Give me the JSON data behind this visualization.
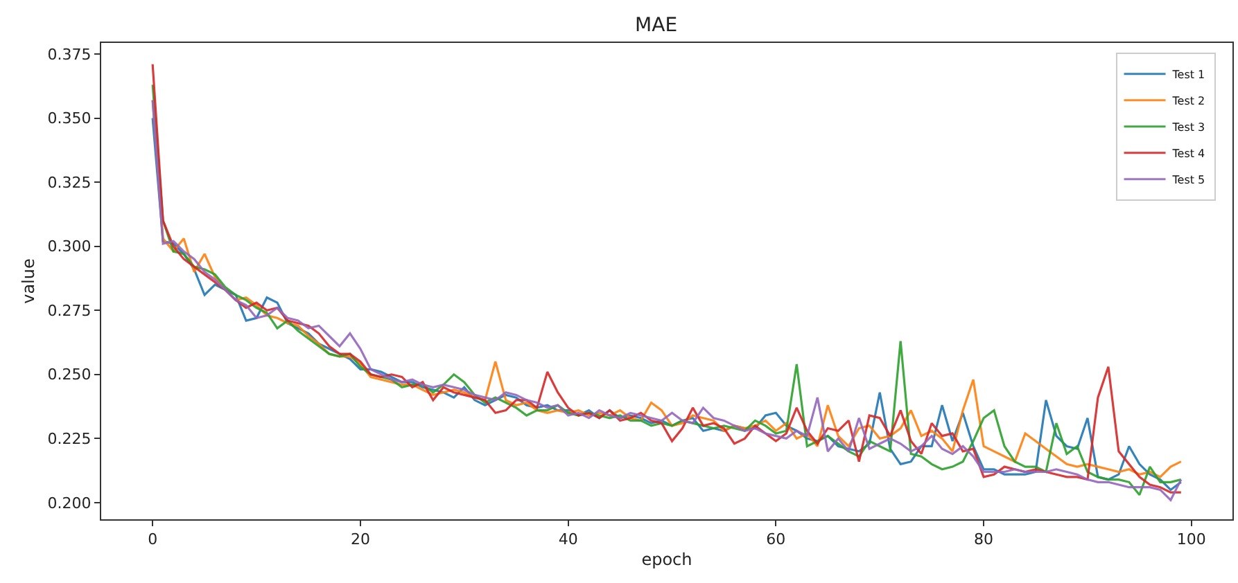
{
  "chart_data": {
    "type": "line",
    "title": "MAE",
    "xlabel": "epoch",
    "ylabel": "value",
    "x": [
      0,
      1,
      2,
      3,
      4,
      5,
      6,
      7,
      8,
      9,
      10,
      11,
      12,
      13,
      14,
      15,
      16,
      17,
      18,
      19,
      20,
      21,
      22,
      23,
      24,
      25,
      26,
      27,
      28,
      29,
      30,
      31,
      32,
      33,
      34,
      35,
      36,
      37,
      38,
      39,
      40,
      41,
      42,
      43,
      44,
      45,
      46,
      47,
      48,
      49,
      50,
      51,
      52,
      53,
      54,
      55,
      56,
      57,
      58,
      59,
      60,
      61,
      62,
      63,
      64,
      65,
      66,
      67,
      68,
      69,
      70,
      71,
      72,
      73,
      74,
      75,
      76,
      77,
      78,
      79,
      80,
      81,
      82,
      83,
      84,
      85,
      86,
      87,
      88,
      89,
      90,
      91,
      92,
      93,
      94,
      95,
      96,
      97,
      98,
      99
    ],
    "xlim": [
      -4.95,
      103.95
    ],
    "xticks": [
      0,
      20,
      40,
      60,
      80,
      100
    ],
    "ylim": [
      0.1935,
      0.3793
    ],
    "yticks": [
      {
        "value": 0.2,
        "label": "0.200"
      },
      {
        "value": 0.225,
        "label": "0.225"
      },
      {
        "value": 0.25,
        "label": "0.250"
      },
      {
        "value": 0.275,
        "label": "0.275"
      },
      {
        "value": 0.3,
        "label": "0.300"
      },
      {
        "value": 0.325,
        "label": "0.325"
      },
      {
        "value": 0.35,
        "label": "0.350"
      },
      {
        "value": 0.375,
        "label": "0.375"
      }
    ],
    "grid": false,
    "legend": "top right",
    "marker": "none",
    "line_style": "solid",
    "series": [
      {
        "name": "Test 1",
        "color": "#1f77b4",
        "values": [
          0.35,
          0.302,
          0.301,
          0.297,
          0.291,
          0.281,
          0.285,
          0.283,
          0.281,
          0.271,
          0.272,
          0.28,
          0.278,
          0.27,
          0.268,
          0.266,
          0.262,
          0.26,
          0.258,
          0.256,
          0.252,
          0.252,
          0.251,
          0.249,
          0.247,
          0.247,
          0.245,
          0.244,
          0.243,
          0.241,
          0.245,
          0.24,
          0.238,
          0.24,
          0.242,
          0.241,
          0.238,
          0.237,
          0.238,
          0.236,
          0.236,
          0.234,
          0.236,
          0.233,
          0.236,
          0.233,
          0.234,
          0.233,
          0.231,
          0.232,
          0.23,
          0.232,
          0.233,
          0.228,
          0.229,
          0.228,
          0.23,
          0.229,
          0.229,
          0.234,
          0.235,
          0.23,
          0.228,
          0.225,
          0.224,
          0.226,
          0.222,
          0.221,
          0.22,
          0.223,
          0.243,
          0.221,
          0.215,
          0.216,
          0.222,
          0.222,
          0.238,
          0.224,
          0.235,
          0.222,
          0.213,
          0.213,
          0.211,
          0.211,
          0.211,
          0.212,
          0.24,
          0.226,
          0.222,
          0.221,
          0.233,
          0.21,
          0.209,
          0.211,
          0.222,
          0.215,
          0.211,
          0.209,
          0.205,
          0.208
        ]
      },
      {
        "name": "Test 2",
        "color": "#ff7f0e",
        "values": [
          0.357,
          0.303,
          0.298,
          0.303,
          0.29,
          0.297,
          0.288,
          0.283,
          0.279,
          0.28,
          0.277,
          0.273,
          0.272,
          0.27,
          0.269,
          0.265,
          0.262,
          0.258,
          0.257,
          0.257,
          0.254,
          0.249,
          0.248,
          0.247,
          0.246,
          0.246,
          0.244,
          0.242,
          0.243,
          0.244,
          0.243,
          0.241,
          0.24,
          0.255,
          0.24,
          0.238,
          0.239,
          0.236,
          0.235,
          0.236,
          0.235,
          0.236,
          0.234,
          0.235,
          0.234,
          0.236,
          0.233,
          0.232,
          0.239,
          0.236,
          0.23,
          0.231,
          0.234,
          0.233,
          0.232,
          0.228,
          0.23,
          0.229,
          0.23,
          0.232,
          0.228,
          0.231,
          0.225,
          0.227,
          0.222,
          0.238,
          0.226,
          0.222,
          0.229,
          0.23,
          0.225,
          0.226,
          0.229,
          0.236,
          0.226,
          0.228,
          0.225,
          0.22,
          0.236,
          0.248,
          0.222,
          0.22,
          0.218,
          0.216,
          0.227,
          0.224,
          0.221,
          0.218,
          0.215,
          0.214,
          0.215,
          0.214,
          0.213,
          0.212,
          0.213,
          0.211,
          0.212,
          0.21,
          0.214,
          0.216
        ]
      },
      {
        "name": "Test 3",
        "color": "#2ca02c",
        "values": [
          0.363,
          0.31,
          0.298,
          0.297,
          0.292,
          0.291,
          0.289,
          0.284,
          0.281,
          0.279,
          0.276,
          0.274,
          0.268,
          0.271,
          0.267,
          0.264,
          0.261,
          0.258,
          0.257,
          0.258,
          0.253,
          0.25,
          0.249,
          0.248,
          0.245,
          0.246,
          0.246,
          0.243,
          0.246,
          0.25,
          0.247,
          0.242,
          0.239,
          0.241,
          0.239,
          0.237,
          0.234,
          0.236,
          0.236,
          0.238,
          0.235,
          0.234,
          0.235,
          0.234,
          0.233,
          0.234,
          0.232,
          0.232,
          0.23,
          0.231,
          0.23,
          0.232,
          0.231,
          0.23,
          0.229,
          0.23,
          0.229,
          0.228,
          0.232,
          0.23,
          0.227,
          0.228,
          0.254,
          0.222,
          0.224,
          0.226,
          0.223,
          0.22,
          0.218,
          0.224,
          0.222,
          0.22,
          0.263,
          0.219,
          0.218,
          0.215,
          0.213,
          0.214,
          0.216,
          0.224,
          0.233,
          0.236,
          0.222,
          0.216,
          0.214,
          0.214,
          0.212,
          0.231,
          0.219,
          0.222,
          0.212,
          0.21,
          0.209,
          0.209,
          0.208,
          0.203,
          0.214,
          0.208,
          0.208,
          0.209
        ]
      },
      {
        "name": "Test 4",
        "color": "#d62728",
        "values": [
          0.371,
          0.31,
          0.3,
          0.295,
          0.292,
          0.289,
          0.286,
          0.283,
          0.279,
          0.276,
          0.278,
          0.275,
          0.276,
          0.271,
          0.27,
          0.269,
          0.266,
          0.261,
          0.258,
          0.258,
          0.255,
          0.25,
          0.249,
          0.25,
          0.249,
          0.245,
          0.247,
          0.24,
          0.245,
          0.243,
          0.242,
          0.241,
          0.24,
          0.235,
          0.236,
          0.24,
          0.24,
          0.237,
          0.251,
          0.243,
          0.237,
          0.234,
          0.235,
          0.233,
          0.236,
          0.232,
          0.233,
          0.235,
          0.232,
          0.231,
          0.224,
          0.229,
          0.237,
          0.23,
          0.231,
          0.229,
          0.223,
          0.225,
          0.23,
          0.227,
          0.224,
          0.227,
          0.237,
          0.228,
          0.223,
          0.229,
          0.228,
          0.232,
          0.216,
          0.234,
          0.233,
          0.226,
          0.236,
          0.224,
          0.219,
          0.231,
          0.226,
          0.227,
          0.22,
          0.221,
          0.21,
          0.211,
          0.214,
          0.213,
          0.212,
          0.213,
          0.212,
          0.211,
          0.21,
          0.21,
          0.209,
          0.241,
          0.253,
          0.22,
          0.215,
          0.21,
          0.207,
          0.206,
          0.204,
          0.204
        ]
      },
      {
        "name": "Test 5",
        "color": "#9467bd",
        "values": [
          0.357,
          0.301,
          0.302,
          0.298,
          0.295,
          0.29,
          0.287,
          0.283,
          0.279,
          0.277,
          0.272,
          0.273,
          0.276,
          0.272,
          0.271,
          0.268,
          0.269,
          0.265,
          0.261,
          0.266,
          0.26,
          0.252,
          0.25,
          0.248,
          0.247,
          0.248,
          0.246,
          0.245,
          0.246,
          0.245,
          0.244,
          0.242,
          0.241,
          0.24,
          0.243,
          0.242,
          0.24,
          0.239,
          0.237,
          0.238,
          0.234,
          0.235,
          0.233,
          0.236,
          0.234,
          0.233,
          0.235,
          0.234,
          0.233,
          0.232,
          0.235,
          0.232,
          0.231,
          0.237,
          0.233,
          0.232,
          0.23,
          0.228,
          0.229,
          0.227,
          0.226,
          0.225,
          0.228,
          0.226,
          0.241,
          0.22,
          0.225,
          0.22,
          0.233,
          0.221,
          0.223,
          0.225,
          0.223,
          0.22,
          0.222,
          0.226,
          0.221,
          0.219,
          0.222,
          0.218,
          0.212,
          0.212,
          0.212,
          0.213,
          0.212,
          0.212,
          0.212,
          0.213,
          0.212,
          0.211,
          0.209,
          0.208,
          0.208,
          0.207,
          0.206,
          0.206,
          0.206,
          0.205,
          0.201,
          0.209
        ]
      }
    ]
  }
}
